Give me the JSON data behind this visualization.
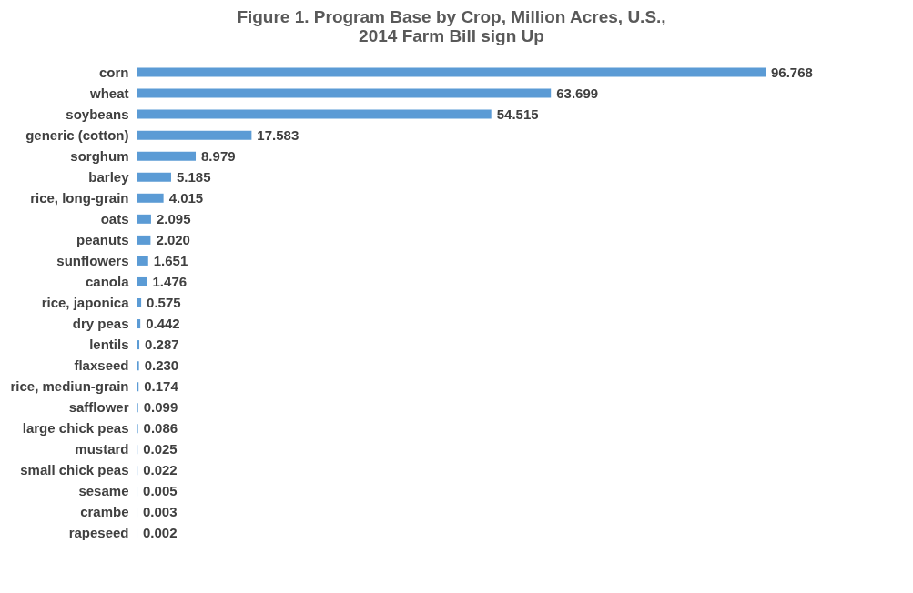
{
  "chart_data": {
    "type": "bar",
    "orientation": "horizontal",
    "title": "Figure 1. Program Base by Crop, Million Acres, U.S.,\n2014 Farm Bill sign Up",
    "categories": [
      "corn",
      "wheat",
      "soybeans",
      "generic (cotton)",
      "sorghum",
      "barley",
      "rice, long-grain",
      "oats",
      "peanuts",
      "sunflowers",
      "canola",
      "rice, japonica",
      "dry peas",
      "lentils",
      "flaxseed",
      "rice, mediun-grain",
      "safflower",
      "large chick peas",
      "mustard",
      "small chick peas",
      "sesame",
      "crambe",
      "rapeseed"
    ],
    "values": [
      96.768,
      63.699,
      54.515,
      17.583,
      8.979,
      5.185,
      4.015,
      2.095,
      2.02,
      1.651,
      1.476,
      0.575,
      0.442,
      0.287,
      0.23,
      0.174,
      0.099,
      0.086,
      0.025,
      0.022,
      0.005,
      0.003,
      0.002
    ],
    "value_labels": [
      "96.768",
      "63.699",
      "54.515",
      "17.583",
      "8.979",
      "5.185",
      "4.015",
      "2.095",
      "2.020",
      "1.651",
      "1.476",
      "0.575",
      "0.442",
      "0.287",
      "0.230",
      "0.174",
      "0.099",
      "0.086",
      "0.025",
      "0.022",
      "0.005",
      "0.003",
      "0.002"
    ],
    "color": "#5b9bd5"
  }
}
